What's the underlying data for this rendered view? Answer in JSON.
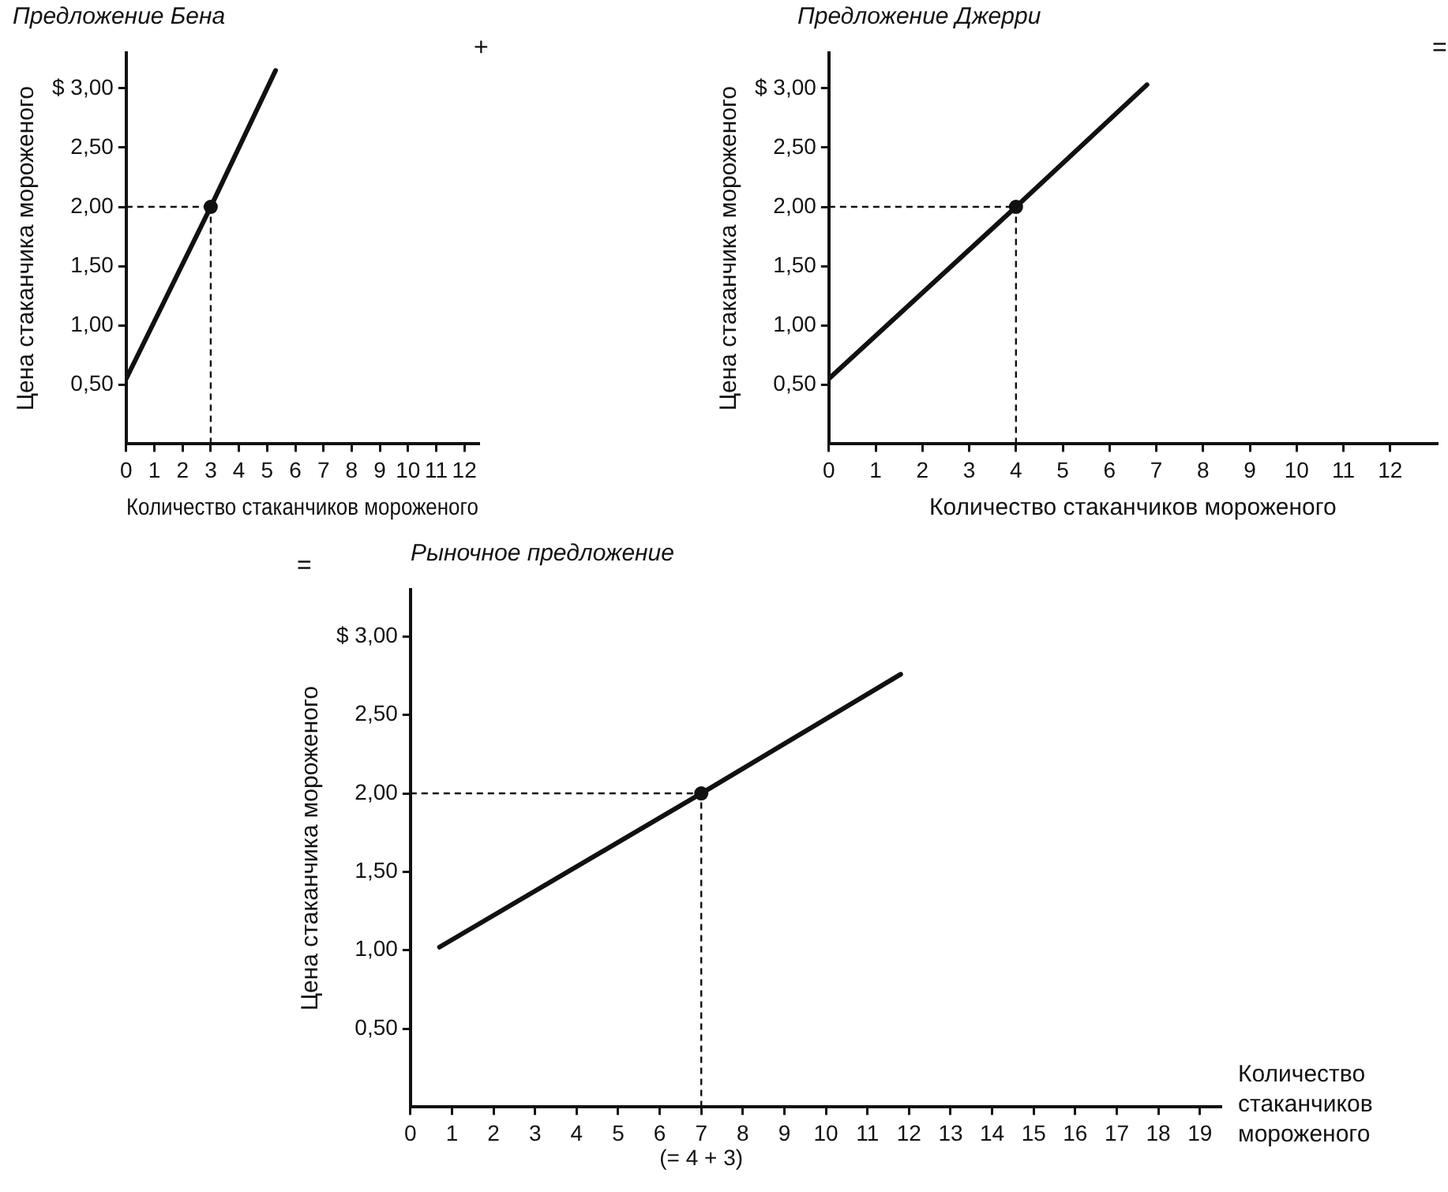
{
  "chart_data": [
    {
      "type": "line",
      "title": "Предложение Бена",
      "xlabel": "Количество стаканчиков мороженого",
      "ylabel": "Цена стаканчика мороженого",
      "annotations": [
        "+"
      ],
      "series": [
        {
          "x": [
            0,
            3,
            5.3
          ],
          "values": [
            0.55,
            2,
            3.15
          ],
          "color": "#111111"
        },
        {
          "type": "scatter",
          "x": [
            3
          ],
          "values": [
            2
          ],
          "color": "#111111",
          "marker": "circle"
        }
      ],
      "xlim": [
        0,
        12.5
      ],
      "xticks": [
        0,
        1,
        2,
        3,
        4,
        5,
        6,
        7,
        8,
        9,
        10,
        11,
        12
      ],
      "ylim": [
        0,
        3.3
      ],
      "yticks": [
        {
          "value": 0.5,
          "label": "0,50"
        },
        {
          "value": 1,
          "label": "1,00"
        },
        {
          "value": 1.5,
          "label": "1,50"
        },
        {
          "value": 2,
          "label": "2,00"
        },
        {
          "value": 2.5,
          "label": "2,50"
        },
        {
          "value": 3,
          "label": "$ 3,00"
        }
      ],
      "ref_lines": [
        {
          "axis": "x",
          "value": 3,
          "line_style": "dashed"
        },
        {
          "axis": "y",
          "value": 2,
          "line_style": "dashed"
        }
      ],
      "grid": false,
      "legend": false,
      "marker": "none"
    },
    {
      "type": "line",
      "title": "Предложение Джерри",
      "xlabel": "Количество стаканчиков мороженого",
      "ylabel": "Цена стаканчика мороженого",
      "annotations": [
        "="
      ],
      "series": [
        {
          "x": [
            0,
            4,
            6.8
          ],
          "values": [
            0.55,
            2,
            3.03
          ],
          "color": "#111111"
        },
        {
          "type": "scatter",
          "x": [
            4
          ],
          "values": [
            2
          ],
          "color": "#111111",
          "marker": "circle"
        }
      ],
      "xlim": [
        0,
        13
      ],
      "xticks": [
        0,
        1,
        2,
        3,
        4,
        5,
        6,
        7,
        8,
        9,
        10,
        11,
        12
      ],
      "ylim": [
        0,
        3.3
      ],
      "yticks": [
        {
          "value": 0.5,
          "label": "0,50"
        },
        {
          "value": 1,
          "label": "1,00"
        },
        {
          "value": 1.5,
          "label": "1,50"
        },
        {
          "value": 2,
          "label": "2,00"
        },
        {
          "value": 2.5,
          "label": "2,50"
        },
        {
          "value": 3,
          "label": "$ 3,00"
        }
      ],
      "ref_lines": [
        {
          "axis": "x",
          "value": 4,
          "line_style": "dashed"
        },
        {
          "axis": "y",
          "value": 2,
          "line_style": "dashed"
        }
      ],
      "grid": false,
      "legend": false,
      "marker": "none"
    },
    {
      "type": "line",
      "title": "Рыночное предложение",
      "xlabel": "Количество стаканчиков мороженого",
      "ylabel": "Цена стаканчика мороженого",
      "annotations": [
        "=",
        {
          "text": "(= 4 + 3)",
          "x": 7,
          "y": 0
        }
      ],
      "series": [
        {
          "x": [
            0.7,
            7,
            11.8
          ],
          "values": [
            1.02,
            2,
            2.76
          ],
          "color": "#111111"
        },
        {
          "type": "scatter",
          "x": [
            7
          ],
          "values": [
            2
          ],
          "color": "#111111",
          "marker": "circle"
        }
      ],
      "xlim": [
        0,
        19.5
      ],
      "xticks": [
        0,
        1,
        2,
        3,
        4,
        5,
        6,
        7,
        8,
        9,
        10,
        11,
        12,
        13,
        14,
        15,
        16,
        17,
        18,
        19
      ],
      "ylim": [
        0,
        3.3
      ],
      "yticks": [
        {
          "value": 0.5,
          "label": "0,50"
        },
        {
          "value": 1,
          "label": "1,00"
        },
        {
          "value": 1.5,
          "label": "1,50"
        },
        {
          "value": 2,
          "label": "2,00"
        },
        {
          "value": 2.5,
          "label": "2,50"
        },
        {
          "value": 3,
          "label": "$ 3,00"
        }
      ],
      "ref_lines": [
        {
          "axis": "x",
          "value": 7,
          "line_style": "dashed"
        },
        {
          "axis": "y",
          "value": 2,
          "line_style": "dashed"
        }
      ],
      "grid": false,
      "legend": false,
      "marker": "none"
    }
  ]
}
